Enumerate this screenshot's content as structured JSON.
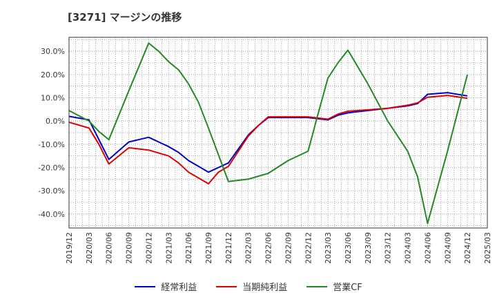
{
  "chart_data": {
    "type": "line",
    "title": "[3271]  マージンの推移",
    "xlabel": "",
    "ylabel": "",
    "ylim": [
      -46,
      36
    ],
    "x_ticks": [
      "2019/12",
      "2020/03",
      "2020/06",
      "2020/09",
      "2020/12",
      "2021/03",
      "2021/06",
      "2021/09",
      "2021/12",
      "2022/03",
      "2022/06",
      "2022/09",
      "2022/12",
      "2023/03",
      "2023/06",
      "2023/09",
      "2023/12",
      "2024/03",
      "2024/06",
      "2024/09",
      "2024/12",
      "2025/03"
    ],
    "y_ticks": [
      30,
      20,
      10,
      0,
      -10,
      -20,
      -30,
      -40
    ],
    "y_tick_labels": [
      "30.0%",
      "20.0%",
      "10.0%",
      "0.0%",
      "-10.0%",
      "-20.0%",
      "-30.0%",
      "-40.0%"
    ],
    "grid": true,
    "legend_position": "bottom",
    "series": [
      {
        "name": "経常利益",
        "color": "#0000cc",
        "points": [
          [
            0,
            2
          ],
          [
            1,
            0.5
          ],
          [
            2,
            -16.5
          ],
          [
            3,
            -9
          ],
          [
            4,
            -7
          ],
          [
            4.5,
            -9
          ],
          [
            5,
            -11
          ],
          [
            5.5,
            -13.5
          ],
          [
            6,
            -17
          ],
          [
            6.5,
            -19.5
          ],
          [
            7,
            -22
          ],
          [
            7.5,
            -20
          ],
          [
            8,
            -18
          ],
          [
            9,
            -6
          ],
          [
            9.5,
            -2
          ],
          [
            10,
            1.5
          ],
          [
            11,
            1.5
          ],
          [
            12,
            1.5
          ],
          [
            13,
            0.5
          ],
          [
            13.5,
            2.5
          ],
          [
            14,
            3.5
          ],
          [
            15,
            4.5
          ],
          [
            16,
            5.5
          ],
          [
            17,
            6.5
          ],
          [
            17.5,
            7.5
          ],
          [
            18,
            11.5
          ],
          [
            19,
            12.2
          ],
          [
            20,
            10.8
          ]
        ]
      },
      {
        "name": "当期純利益",
        "color": "#dd0000",
        "points": [
          [
            0,
            -0.5
          ],
          [
            1,
            -3
          ],
          [
            1.5,
            -10
          ],
          [
            2,
            -18.5
          ],
          [
            3,
            -11.5
          ],
          [
            4,
            -12.5
          ],
          [
            5,
            -15
          ],
          [
            5.5,
            -18
          ],
          [
            6,
            -22
          ],
          [
            6.5,
            -24.5
          ],
          [
            7,
            -27
          ],
          [
            7.5,
            -22
          ],
          [
            8,
            -19.5
          ],
          [
            9,
            -6.5
          ],
          [
            9.5,
            -2
          ],
          [
            10,
            1.8
          ],
          [
            11,
            1.8
          ],
          [
            12,
            1.8
          ],
          [
            13,
            0.8
          ],
          [
            13.5,
            3
          ],
          [
            14,
            4.2
          ],
          [
            15,
            4.8
          ],
          [
            16,
            5.5
          ],
          [
            17,
            6.8
          ],
          [
            17.5,
            7.8
          ],
          [
            18,
            10.2
          ],
          [
            19,
            11
          ],
          [
            20,
            9.8
          ]
        ]
      },
      {
        "name": "営業CF",
        "color": "#228822",
        "points": [
          [
            0,
            4.5
          ],
          [
            1,
            0
          ],
          [
            1.5,
            -4.5
          ],
          [
            2,
            -8
          ],
          [
            3,
            13
          ],
          [
            4,
            33.5
          ],
          [
            4.5,
            30
          ],
          [
            5,
            25.5
          ],
          [
            5.5,
            22
          ],
          [
            6,
            16
          ],
          [
            6.5,
            8
          ],
          [
            7,
            -3
          ],
          [
            8,
            -26
          ],
          [
            9,
            -25
          ],
          [
            10,
            -22.5
          ],
          [
            11,
            -17
          ],
          [
            12,
            -13
          ],
          [
            12.5,
            3
          ],
          [
            13,
            18.5
          ],
          [
            13.5,
            25
          ],
          [
            14,
            30.5
          ],
          [
            15,
            16
          ],
          [
            16,
            0
          ],
          [
            16.5,
            -6.5
          ],
          [
            17,
            -13
          ],
          [
            17.5,
            -24
          ],
          [
            18,
            -44
          ],
          [
            19,
            -13
          ],
          [
            20,
            20
          ]
        ]
      }
    ]
  }
}
